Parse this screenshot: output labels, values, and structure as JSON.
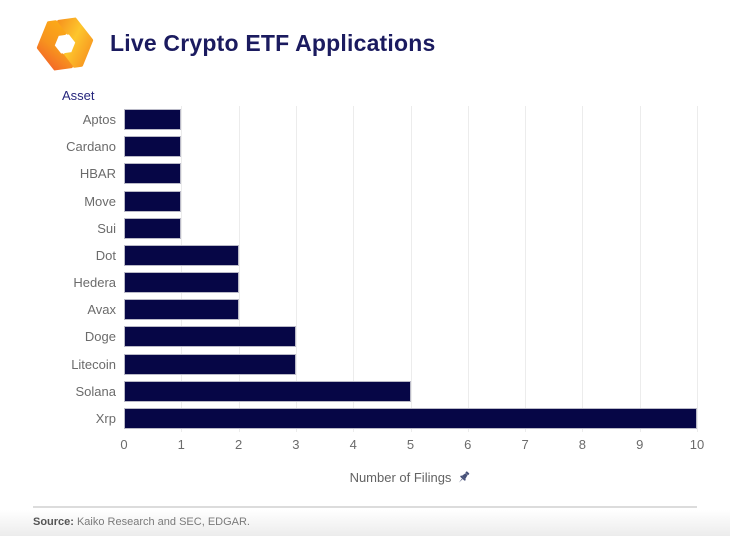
{
  "header": {
    "title": "Live Crypto ETF Applications",
    "logo": "kaiko-logo"
  },
  "chart_data": {
    "type": "bar",
    "orientation": "horizontal",
    "title": "Live Crypto ETF Applications",
    "ylabel": "Asset",
    "xlabel": "Number of Filings",
    "categories": [
      "Aptos",
      "Cardano",
      "HBAR",
      "Move",
      "Sui",
      "Dot",
      "Hedera",
      "Avax",
      "Doge",
      "Litecoin",
      "Solana",
      "Xrp"
    ],
    "values": [
      1,
      1,
      1,
      1,
      1,
      2,
      2,
      2,
      3,
      3,
      5,
      10
    ],
    "xticks": [
      0,
      1,
      2,
      3,
      4,
      5,
      6,
      7,
      8,
      9,
      10
    ],
    "xlim": [
      0,
      10
    ],
    "grid": "vertical-light",
    "legend": "none",
    "bar_color": "#060646"
  },
  "icons": {
    "pushpin": "pushpin-icon"
  },
  "colors": {
    "bar": "#060646",
    "bar_border": "#b9b9c7",
    "title_navy": "#1b1b5f",
    "axis_label_navy": "#26267d",
    "tick_gray": "#6b6b6b",
    "gridline": "#ececec",
    "divider": "#dcdcdc",
    "pushpin": "#475179",
    "logo_orange_deep": "#f2572b",
    "logo_orange": "#f7941e",
    "logo_yellow": "#fdc62d"
  },
  "footer": {
    "source_label": "Source:",
    "source_text": "Kaiko Research and SEC, EDGAR."
  }
}
